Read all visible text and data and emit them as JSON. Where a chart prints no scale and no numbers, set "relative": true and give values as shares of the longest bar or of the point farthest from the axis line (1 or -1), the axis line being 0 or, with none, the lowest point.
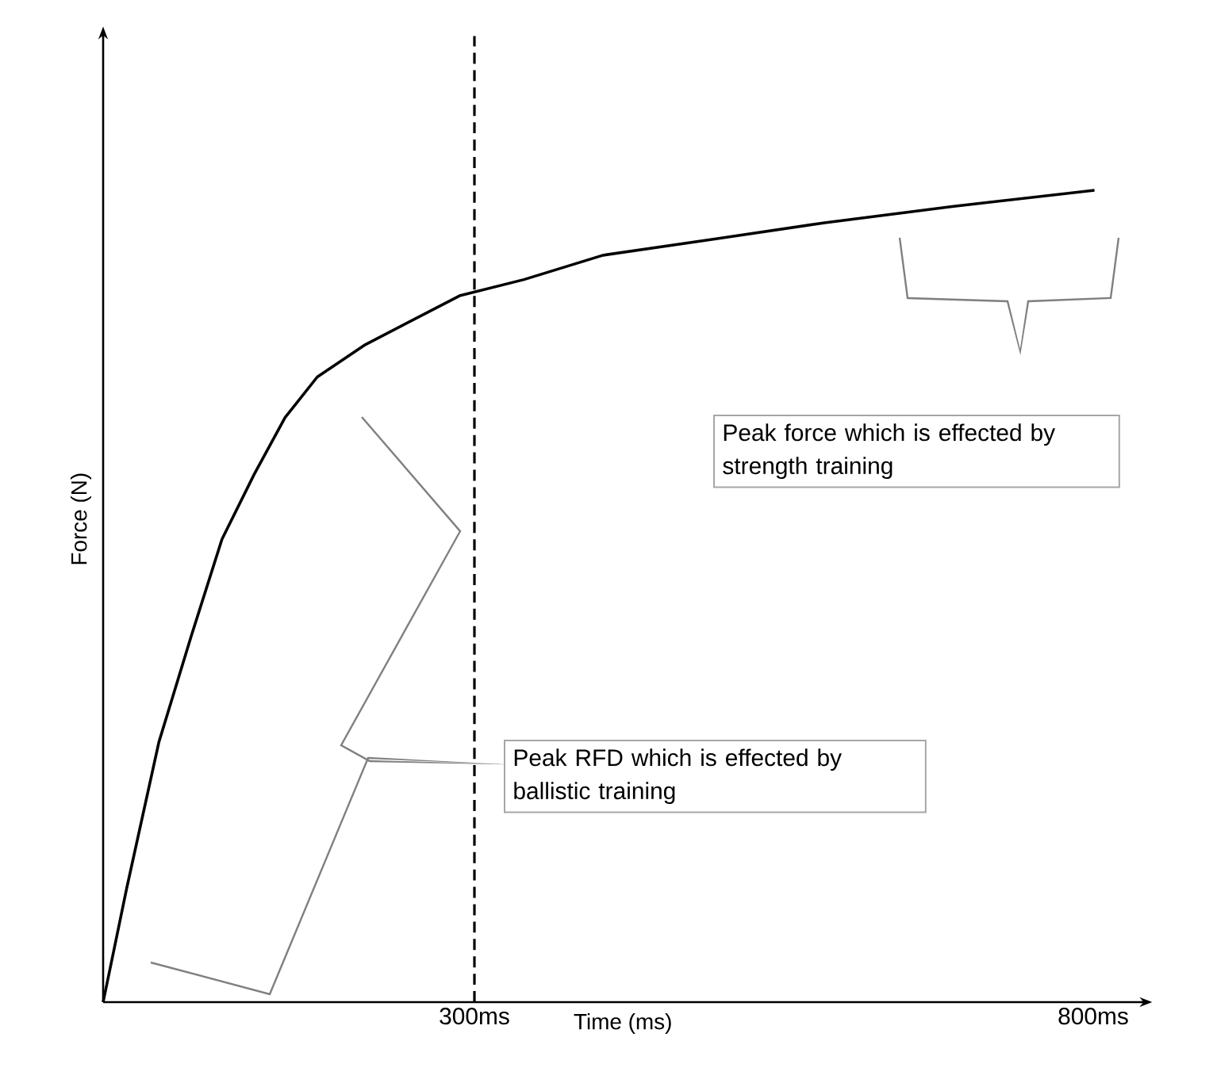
{
  "chart_data": {
    "type": "line",
    "relative": true,
    "xlabel": "Time (ms)",
    "ylabel": "Force (N)",
    "x": [
      0,
      19,
      45,
      71,
      96,
      122,
      147,
      173,
      212,
      250,
      288,
      340,
      404,
      494,
      583,
      686,
      801
    ],
    "xlim": [
      0,
      840
    ],
    "xticks": [
      {
        "value": 300,
        "label": "300ms"
      },
      {
        "value": 800,
        "label": "800ms"
      }
    ],
    "series": [
      {
        "color": "#000000",
        "values": [
          0,
          0.14,
          0.32,
          0.45,
          0.57,
          0.65,
          0.72,
          0.77,
          0.81,
          0.84,
          0.87,
          0.89,
          0.92,
          0.94,
          0.96,
          0.98,
          1
        ]
      }
    ],
    "ref_lines": [
      {
        "axis": "x",
        "value": 300,
        "color": "#000000",
        "line_style": "dashed"
      }
    ],
    "annotations": [
      "Peak force which is effected by strength training",
      "Peak RFD which is effected by ballistic training"
    ],
    "grid": false,
    "marker": "none",
    "line_style": "solid"
  }
}
